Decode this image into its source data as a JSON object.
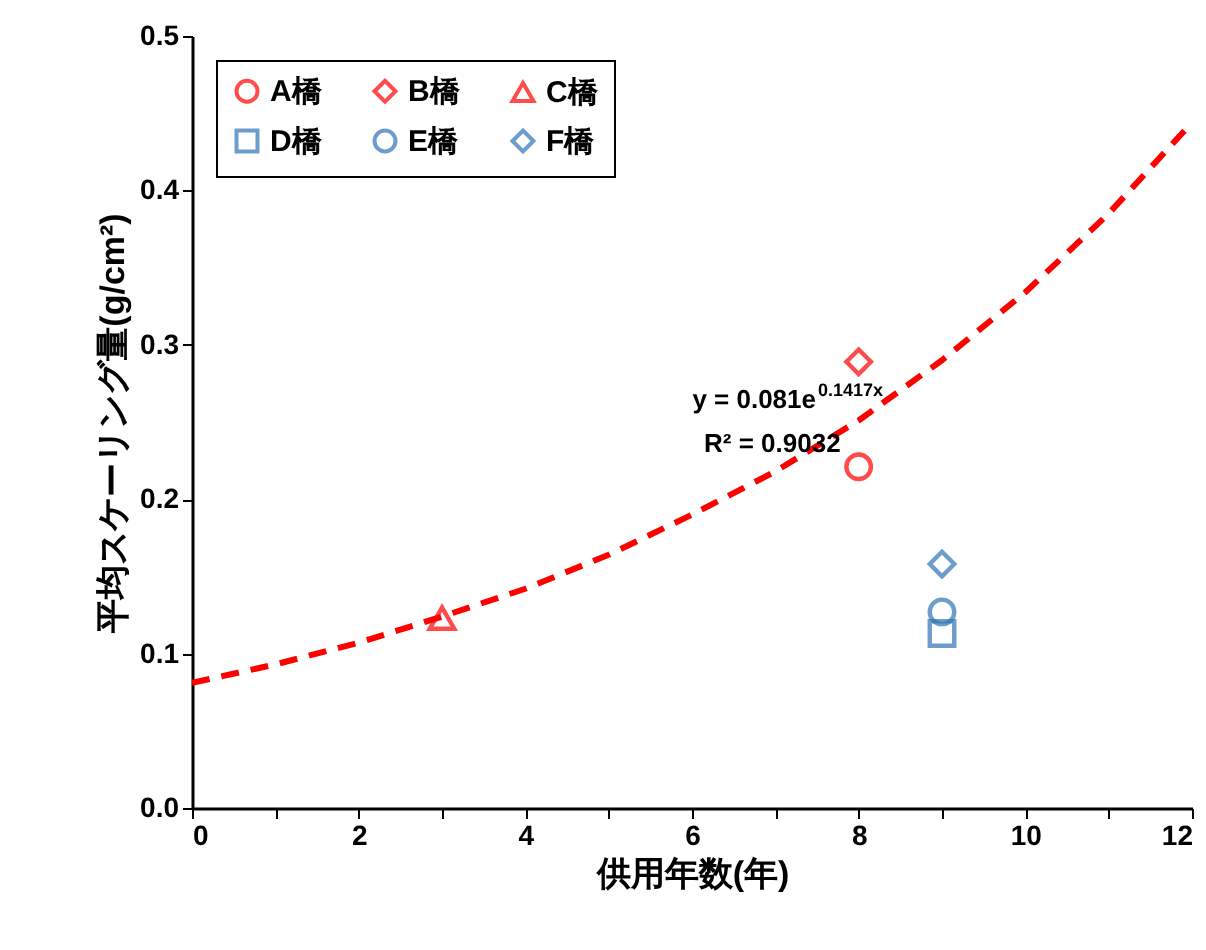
{
  "chart_data": {
    "type": "scatter",
    "xlabel": "供用年数(年)",
    "ylabel": "平均スケーリング量(g/cm²)",
    "xlim": [
      0,
      12
    ],
    "ylim": [
      0,
      0.5
    ],
    "xticks": [
      0,
      {
        "value": 1,
        "label": null
      },
      2,
      {
        "value": 3,
        "label": null
      },
      4,
      {
        "value": 5,
        "label": null
      },
      6,
      {
        "value": 7,
        "label": null
      },
      8,
      {
        "value": 9,
        "label": null
      },
      10,
      {
        "value": 11,
        "label": null
      },
      12
    ],
    "yticks": [
      {
        "value": 0,
        "label": "0.0"
      },
      0.1,
      0.2,
      0.3,
      0.4,
      0.5
    ],
    "grid": false,
    "legend": "top left",
    "series": [
      {
        "name": "A橋",
        "color": "#ff0000",
        "marker": "circle",
        "x": [
          8
        ],
        "values": [
          0.221
        ]
      },
      {
        "name": "B橋",
        "color": "#ff0000",
        "marker": "diamond",
        "x": [
          8
        ],
        "values": [
          0.289
        ]
      },
      {
        "name": "C橋",
        "color": "#ff0000",
        "marker": "triangle",
        "x": [
          3
        ],
        "values": [
          0.123
        ]
      },
      {
        "name": "D橋",
        "color": "#2e75b6",
        "marker": "square",
        "x": [
          9
        ],
        "values": [
          0.113
        ]
      },
      {
        "name": "E橋",
        "color": "#2e75b6",
        "marker": "circle",
        "x": [
          9
        ],
        "values": [
          0.127
        ]
      },
      {
        "name": "F橋",
        "color": "#2e75b6",
        "marker": "diamond",
        "x": [
          9
        ],
        "values": [
          0.158
        ]
      },
      {
        "type": "line",
        "color": "#ff0000",
        "line_style": "dashed",
        "x": [
          0,
          1,
          2,
          3,
          4,
          5,
          6,
          7,
          8,
          9,
          10,
          11,
          12
        ],
        "values": [
          0.081,
          0.093,
          0.107,
          0.124,
          0.142,
          0.164,
          0.19,
          0.218,
          0.251,
          0.29,
          0.334,
          0.385,
          0.444
        ]
      }
    ],
    "annotations": [
      "y = 0.081e$^{0.1417x}$",
      "R² = 0.9032"
    ]
  }
}
